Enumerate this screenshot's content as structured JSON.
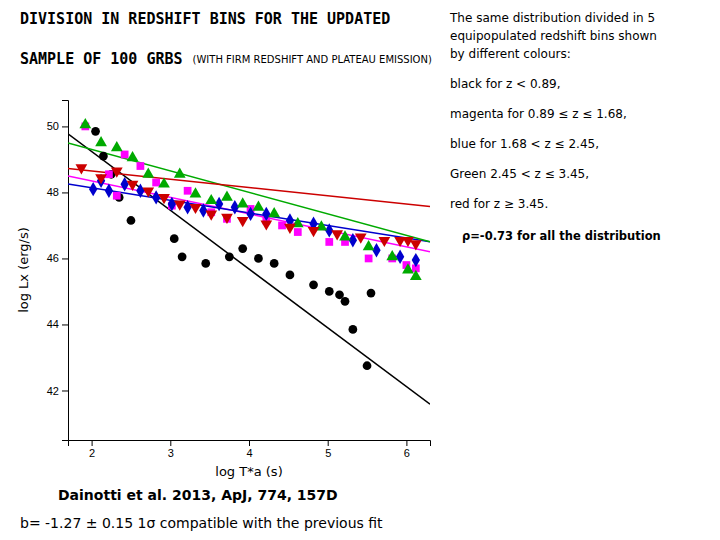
{
  "chart_data": {
    "type": "scatter",
    "title": [
      "DIVISION IN REDSHIFT BINS FOR THE UPDATED",
      "SAMPLE OF 100 GRBS"
    ],
    "subtitle": "(WITH FIRM REDSHIFT AND PLATEAU EMISSION)",
    "xlabel": "log T*a (s)",
    "ylabel": "log Lx (erg/s)",
    "xlim": [
      1.7,
      6.3
    ],
    "ylim": [
      40.5,
      50.8
    ],
    "xticks": [
      2,
      3,
      4,
      5,
      6
    ],
    "yticks": [
      42,
      44,
      46,
      48,
      50
    ],
    "annotations": [
      "The same distribution divided in 5",
      "equipopulated redshift bins shown",
      "by different colours:",
      "black for z < 0.89,",
      "magenta for 0.89 ≤ z ≤ 1.68,",
      "blue for 1.68 < z ≤ 2.45,",
      "Green 2.45 < z ≤ 3.45,",
      "red for z ≥ 3.45.",
      "ρ=-0.73 for all the distribution",
      "Dainotti et al. 2013, ApJ, 774, 157D",
      "b= -1.27 ± 0.15 1σ compatible with the previous fit"
    ],
    "series": [
      {
        "type": "scatter",
        "color": "#000000",
        "marker": "circle",
        "x": [
          2.05,
          2.15,
          2.25,
          2.35,
          2.5,
          3.05,
          3.15,
          3.45,
          3.75,
          3.92,
          4.12,
          4.32,
          4.52,
          4.82,
          5.02,
          5.15,
          5.22,
          5.32,
          5.5,
          5.55
        ],
        "values": [
          49.85,
          49.1,
          48.55,
          47.85,
          47.15,
          46.6,
          46.05,
          45.85,
          46.05,
          46.3,
          46.0,
          45.85,
          45.5,
          45.2,
          45.0,
          44.9,
          44.7,
          43.85,
          42.75,
          44.95
        ]
      },
      {
        "type": "scatter",
        "color": "#ff00ff",
        "marker": "square",
        "x": [
          1.92,
          2.22,
          2.32,
          2.42,
          2.62,
          2.82,
          3.02,
          3.22,
          3.52,
          3.72,
          4.02,
          4.22,
          4.42,
          4.62,
          5.02,
          5.22,
          5.52,
          5.82,
          6.0,
          6.12
        ],
        "values": [
          50.0,
          48.55,
          47.9,
          49.15,
          48.8,
          48.3,
          47.6,
          48.05,
          47.4,
          47.2,
          47.5,
          47.15,
          47.0,
          46.8,
          46.5,
          46.5,
          46.0,
          46.0,
          45.8,
          45.7
        ]
      },
      {
        "type": "scatter",
        "color": "#0000cd",
        "marker": "diamond",
        "x": [
          2.02,
          2.12,
          2.22,
          2.42,
          2.62,
          2.82,
          3.02,
          3.22,
          3.42,
          3.62,
          3.82,
          4.02,
          4.22,
          4.52,
          4.82,
          5.02,
          5.32,
          5.62,
          5.92,
          6.12
        ],
        "values": [
          48.1,
          48.35,
          48.05,
          48.25,
          48.05,
          47.85,
          47.65,
          47.55,
          47.45,
          47.65,
          47.55,
          47.35,
          47.35,
          47.15,
          47.05,
          46.85,
          46.55,
          46.25,
          46.05,
          45.95
        ]
      },
      {
        "type": "scatter",
        "color": "#00aa00",
        "marker": "triangle-up",
        "x": [
          1.92,
          2.12,
          2.32,
          2.52,
          2.72,
          2.92,
          3.12,
          3.32,
          3.52,
          3.72,
          3.92,
          4.12,
          4.32,
          4.62,
          4.92,
          5.22,
          5.52,
          5.82,
          6.02,
          6.12
        ],
        "values": [
          50.05,
          49.5,
          49.35,
          49.05,
          48.55,
          48.25,
          48.55,
          47.95,
          47.75,
          47.85,
          47.65,
          47.55,
          47.35,
          47.05,
          46.95,
          46.65,
          46.35,
          46.05,
          45.65,
          45.45
        ]
      },
      {
        "type": "scatter",
        "color": "#cc0000",
        "marker": "triangle-down",
        "x": [
          1.87,
          2.12,
          2.32,
          2.52,
          2.72,
          2.92,
          3.12,
          3.32,
          3.52,
          3.72,
          3.92,
          4.22,
          4.52,
          4.82,
          5.12,
          5.42,
          5.72,
          5.92,
          6.02,
          6.12
        ],
        "values": [
          48.75,
          48.45,
          48.65,
          48.25,
          48.05,
          47.85,
          47.65,
          47.55,
          47.35,
          47.25,
          47.15,
          47.05,
          46.95,
          46.85,
          46.75,
          46.65,
          46.55,
          46.55,
          46.55,
          46.45
        ]
      },
      {
        "type": "line",
        "color": "#000000",
        "line_style": "solid",
        "x": [
          1.7,
          6.3
        ],
        "values": [
          49.774,
          41.586
        ]
      },
      {
        "type": "line",
        "color": "#ff00ff",
        "line_style": "solid",
        "x": [
          1.7,
          6.3
        ],
        "values": [
          48.5,
          46.2
        ]
      },
      {
        "type": "line",
        "color": "#0000cd",
        "line_style": "solid",
        "x": [
          1.7,
          6.3
        ],
        "values": [
          48.254,
          46.506
        ]
      },
      {
        "type": "line",
        "color": "#00aa00",
        "line_style": "solid",
        "x": [
          1.7,
          6.3
        ],
        "values": [
          49.495,
          46.505
        ]
      },
      {
        "type": "line",
        "color": "#cc0000",
        "line_style": "solid",
        "x": [
          1.7,
          6.3
        ],
        "values": [
          48.725,
          47.575
        ]
      }
    ]
  }
}
